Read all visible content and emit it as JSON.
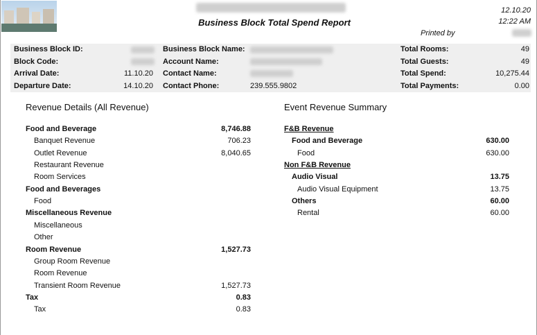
{
  "header": {
    "title": "Business Block Total Spend Report",
    "date": "12.10.20",
    "time": "12:22 AM",
    "printed_by": "Printed by"
  },
  "info": {
    "columns": [
      {
        "rows": [
          {
            "label": "Business Block ID:"
          },
          {
            "label": "Block Code:"
          },
          {
            "label": "Arrival Date:",
            "value": "11.10.20"
          },
          {
            "label": "Departure Date:",
            "value": "14.10.20"
          }
        ]
      },
      {
        "rows": [
          {
            "label": "Business Block Name:"
          },
          {
            "label": "Account Name:"
          },
          {
            "label": "Contact Name:"
          },
          {
            "label": "Contact Phone:",
            "value": "239.555.9802"
          }
        ]
      },
      {
        "rows": [
          {
            "label": "Total Rooms:",
            "value": "49"
          },
          {
            "label": "Total Guests:",
            "value": "49"
          },
          {
            "label": "Total Spend:",
            "value": "10,275.44"
          },
          {
            "label": "Total Payments:",
            "value": "0.00"
          }
        ]
      }
    ]
  },
  "revenue_details": {
    "title": "Revenue Details (All Revenue)",
    "groups": [
      {
        "name": "Food and Beverage",
        "total": "8,746.88",
        "items": [
          {
            "name": "Banquet Revenue",
            "value": "706.23"
          },
          {
            "name": "Outlet Revenue",
            "value": "8,040.65"
          },
          {
            "name": "Restaurant Revenue"
          },
          {
            "name": "Room Services"
          }
        ]
      },
      {
        "name": "Food and Beverages",
        "items": [
          {
            "name": "Food"
          }
        ]
      },
      {
        "name": "Miscellaneous Revenue",
        "items": [
          {
            "name": "Miscellaneous"
          },
          {
            "name": "Other"
          }
        ]
      },
      {
        "name": "Room Revenue",
        "total": "1,527.73",
        "items": [
          {
            "name": "Group Room Revenue"
          },
          {
            "name": "Room Revenue"
          },
          {
            "name": "Transient Room Revenue",
            "value": "1,527.73"
          }
        ]
      },
      {
        "name": "Tax",
        "total": "0.83",
        "items": [
          {
            "name": "Tax",
            "value": "0.83"
          }
        ]
      }
    ]
  },
  "event_summary": {
    "title": "Event Revenue Summary",
    "sections": [
      {
        "name": "F&B Revenue",
        "groups": [
          {
            "name": "Food and Beverage",
            "total": "630.00",
            "items": [
              {
                "name": "Food",
                "value": "630.00"
              }
            ]
          }
        ]
      },
      {
        "name": "Non F&B Revenue",
        "groups": [
          {
            "name": "Audio Visual",
            "total": "13.75",
            "items": [
              {
                "name": "Audio Visual Equipment",
                "value": "13.75"
              }
            ]
          },
          {
            "name": "Others",
            "total": "60.00",
            "items": [
              {
                "name": "Rental",
                "value": "60.00"
              }
            ]
          }
        ]
      }
    ]
  }
}
